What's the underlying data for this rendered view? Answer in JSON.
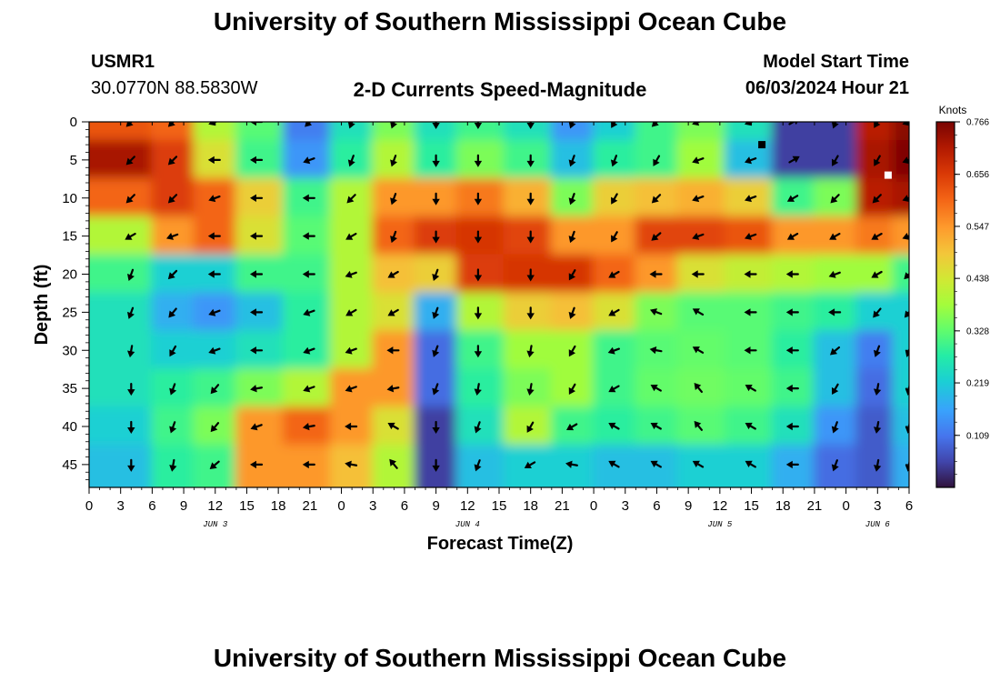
{
  "header": {
    "title": "University of Southern Mississippi Ocean Cube",
    "station_id": "USMR1",
    "station_coords": "30.0770N  88.5830W",
    "plot_title": "2-D Currents Speed-Magnitude",
    "model_label": "Model Start Time",
    "model_time": "06/03/2024 Hour 21"
  },
  "footer": {
    "title": "University of Southern Mississippi Ocean Cube"
  },
  "chart_data": {
    "type": "heatmap",
    "title": "2-D Currents Speed-Magnitude",
    "xlabel": "Forecast Time(Z)",
    "ylabel": "Depth (ft)",
    "x_ticks": [
      "0",
      "3",
      "6",
      "9",
      "12",
      "15",
      "18",
      "21",
      "0",
      "3",
      "6",
      "9",
      "12",
      "15",
      "18",
      "21",
      "0",
      "3",
      "6",
      "9",
      "12",
      "15",
      "18",
      "21",
      "0",
      "3",
      "6"
    ],
    "x_range_hours": [
      0,
      78
    ],
    "date_labels": [
      {
        "text": "JUN 3",
        "hour": 12
      },
      {
        "text": "JUN 4",
        "hour": 36
      },
      {
        "text": "JUN 5",
        "hour": 60
      },
      {
        "text": "JUN 6",
        "hour": 75
      }
    ],
    "y_ticks": [
      0,
      5,
      10,
      15,
      20,
      25,
      30,
      35,
      40,
      45
    ],
    "ylim": [
      0,
      48
    ],
    "colorbar": {
      "label": "Knots",
      "ticks": [
        "0.766",
        "0.656",
        "0.547",
        "0.438",
        "0.328",
        "0.219",
        "0.109"
      ],
      "range": [
        0,
        0.766
      ]
    },
    "columns_hours": [
      4,
      8,
      12,
      16,
      21,
      25,
      29,
      33,
      37,
      42,
      46,
      50,
      54,
      58,
      63,
      67,
      71,
      75,
      78
    ],
    "rows_depth_ft": [
      0,
      5,
      10,
      15,
      20,
      25,
      30,
      35,
      40,
      45
    ],
    "speed_knots": [
      [
        0.62,
        0.6,
        0.4,
        0.32,
        0.12,
        0.25,
        0.35,
        0.25,
        0.3,
        0.25,
        0.15,
        0.22,
        0.3,
        0.35,
        0.25,
        0.05,
        0.05,
        0.7,
        0.75
      ],
      [
        0.72,
        0.65,
        0.45,
        0.3,
        0.15,
        0.28,
        0.4,
        0.28,
        0.35,
        0.3,
        0.2,
        0.28,
        0.3,
        0.38,
        0.2,
        0.05,
        0.05,
        0.72,
        0.76
      ],
      [
        0.6,
        0.65,
        0.6,
        0.48,
        0.3,
        0.4,
        0.55,
        0.55,
        0.58,
        0.52,
        0.35,
        0.48,
        0.5,
        0.52,
        0.48,
        0.3,
        0.35,
        0.7,
        0.72
      ],
      [
        0.4,
        0.55,
        0.6,
        0.45,
        0.32,
        0.4,
        0.6,
        0.65,
        0.66,
        0.64,
        0.55,
        0.55,
        0.64,
        0.64,
        0.62,
        0.55,
        0.55,
        0.58,
        0.55
      ],
      [
        0.3,
        0.22,
        0.22,
        0.3,
        0.3,
        0.4,
        0.5,
        0.48,
        0.65,
        0.66,
        0.66,
        0.6,
        0.55,
        0.45,
        0.42,
        0.4,
        0.38,
        0.38,
        0.3
      ],
      [
        0.25,
        0.18,
        0.15,
        0.2,
        0.28,
        0.4,
        0.45,
        0.18,
        0.4,
        0.48,
        0.5,
        0.45,
        0.35,
        0.32,
        0.32,
        0.3,
        0.28,
        0.22,
        0.22
      ],
      [
        0.25,
        0.22,
        0.22,
        0.25,
        0.28,
        0.4,
        0.55,
        0.1,
        0.3,
        0.38,
        0.38,
        0.3,
        0.32,
        0.33,
        0.32,
        0.28,
        0.2,
        0.12,
        0.22
      ],
      [
        0.25,
        0.28,
        0.3,
        0.35,
        0.4,
        0.55,
        0.55,
        0.1,
        0.28,
        0.35,
        0.38,
        0.3,
        0.33,
        0.34,
        0.33,
        0.3,
        0.2,
        0.1,
        0.22
      ],
      [
        0.22,
        0.3,
        0.35,
        0.55,
        0.6,
        0.55,
        0.45,
        0.05,
        0.25,
        0.4,
        0.3,
        0.28,
        0.3,
        0.32,
        0.3,
        0.25,
        0.15,
        0.08,
        0.2
      ],
      [
        0.2,
        0.28,
        0.3,
        0.55,
        0.55,
        0.5,
        0.4,
        0.05,
        0.2,
        0.22,
        0.22,
        0.2,
        0.2,
        0.22,
        0.22,
        0.18,
        0.1,
        0.08,
        0.18
      ]
    ],
    "arrow_direction_deg": [
      [
        225,
        225,
        250,
        270,
        225,
        200,
        200,
        180,
        180,
        180,
        200,
        210,
        225,
        250,
        250,
        60,
        200,
        210,
        250
      ],
      [
        225,
        225,
        270,
        270,
        250,
        200,
        200,
        180,
        180,
        180,
        200,
        200,
        210,
        250,
        250,
        60,
        210,
        210,
        250
      ],
      [
        225,
        225,
        250,
        270,
        270,
        225,
        200,
        180,
        180,
        180,
        200,
        210,
        225,
        250,
        250,
        240,
        225,
        225,
        250
      ],
      [
        240,
        250,
        270,
        270,
        270,
        240,
        200,
        180,
        180,
        180,
        200,
        210,
        230,
        250,
        250,
        240,
        240,
        240,
        250
      ],
      [
        200,
        225,
        270,
        270,
        270,
        250,
        240,
        200,
        180,
        180,
        210,
        240,
        270,
        270,
        270,
        270,
        250,
        240,
        225
      ],
      [
        200,
        220,
        250,
        270,
        250,
        240,
        240,
        200,
        180,
        180,
        200,
        240,
        290,
        300,
        270,
        270,
        270,
        220,
        220
      ],
      [
        190,
        210,
        250,
        270,
        250,
        250,
        270,
        200,
        180,
        190,
        210,
        250,
        280,
        300,
        270,
        270,
        230,
        200,
        200
      ],
      [
        180,
        200,
        220,
        260,
        250,
        250,
        260,
        200,
        190,
        190,
        210,
        240,
        300,
        320,
        300,
        270,
        210,
        190,
        190
      ],
      [
        180,
        200,
        220,
        250,
        260,
        270,
        300,
        180,
        200,
        210,
        240,
        300,
        300,
        320,
        300,
        270,
        200,
        190,
        190
      ],
      [
        180,
        190,
        230,
        270,
        270,
        280,
        320,
        180,
        200,
        240,
        280,
        300,
        300,
        300,
        300,
        270,
        200,
        190,
        190
      ]
    ],
    "markers": [
      {
        "hour": 64,
        "depth_ft": 3,
        "color": "#000000"
      },
      {
        "hour": 76,
        "depth_ft": 7,
        "color": "#ffffff"
      }
    ]
  }
}
